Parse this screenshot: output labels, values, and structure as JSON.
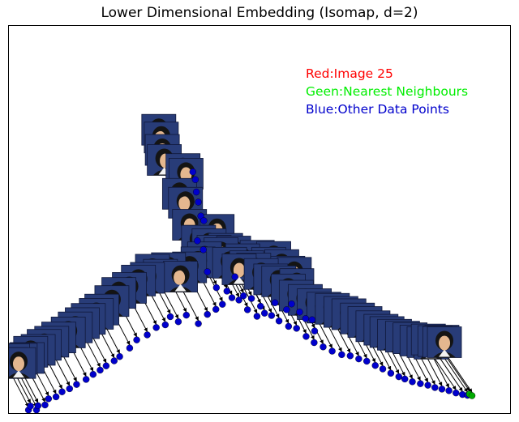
{
  "chart_data": {
    "type": "scatter",
    "title": "Lower Dimensional Embedding (Isomap, d=2)",
    "xlabel": "",
    "ylabel": "",
    "xlim": [
      0,
      100
    ],
    "ylim": [
      0,
      100
    ],
    "grid": false,
    "annotations": [
      {
        "text": "Red:Image 25",
        "color": "#ff0000"
      },
      {
        "text": "Geen:Nearest Neighbours",
        "color": "#00ee00"
      },
      {
        "text": "Blue:Other Data Points",
        "color": "#0000cc"
      }
    ],
    "colors": {
      "highlight": "#ff0000",
      "neighbours": "#00aa00",
      "points": "#0000cc",
      "arrows": "#000000",
      "thumbnail_background": "#283c78",
      "thumbnail_border": "#10183a"
    },
    "thumbnail_icon": "face-photo-icon",
    "series": [
      {
        "name": "Other Data Points",
        "color": "#0000cc",
        "points": [
          [
            3.9,
            0.8
          ],
          [
            5.5,
            0.8
          ],
          [
            4.3,
            1.8
          ],
          [
            5.8,
            1.9
          ],
          [
            7.2,
            2.1
          ],
          [
            7.9,
            3.7
          ],
          [
            9.4,
            4.2
          ],
          [
            10.6,
            5.5
          ],
          [
            12.1,
            6.3
          ],
          [
            13.5,
            7.4
          ],
          [
            15.4,
            8.7
          ],
          [
            16.8,
            10.0
          ],
          [
            18.2,
            11.1
          ],
          [
            19.4,
            12.2
          ],
          [
            21.0,
            13.5
          ],
          [
            22.1,
            14.6
          ],
          [
            24.1,
            16.8
          ],
          [
            25.5,
            18.9
          ],
          [
            27.6,
            20.2
          ],
          [
            29.4,
            22.1
          ],
          [
            31.2,
            22.8
          ],
          [
            32.2,
            24.9
          ],
          [
            33.8,
            23.6
          ],
          [
            35.4,
            25.3
          ],
          [
            37.8,
            23.1
          ],
          [
            39.6,
            25.5
          ],
          [
            41.3,
            26.8
          ],
          [
            42.6,
            28.1
          ],
          [
            44.5,
            29.8
          ],
          [
            45.9,
            29.2
          ],
          [
            47.6,
            26.7
          ],
          [
            49.5,
            25.0
          ],
          [
            51.0,
            25.8
          ],
          [
            52.4,
            25.2
          ],
          [
            53.9,
            23.8
          ],
          [
            55.8,
            22.4
          ],
          [
            57.4,
            21.9
          ],
          [
            59.3,
            19.8
          ],
          [
            60.9,
            18.2
          ],
          [
            62.7,
            17.1
          ],
          [
            64.5,
            16.0
          ],
          [
            66.4,
            15.1
          ],
          [
            68.1,
            14.8
          ],
          [
            69.8,
            14.0
          ],
          [
            71.4,
            13.4
          ],
          [
            73.1,
            12.3
          ],
          [
            74.6,
            11.4
          ],
          [
            76.2,
            10.3
          ],
          [
            77.8,
            9.4
          ],
          [
            79.0,
            8.8
          ],
          [
            80.5,
            8.1
          ],
          [
            82.1,
            7.6
          ],
          [
            83.6,
            7.2
          ],
          [
            85.0,
            6.6
          ],
          [
            86.4,
            6.2
          ],
          [
            87.8,
            5.8
          ],
          [
            89.2,
            5.2
          ],
          [
            90.5,
            4.8
          ],
          [
            91.5,
            4.6
          ],
          [
            36.7,
            62.3
          ],
          [
            37.2,
            60.3
          ],
          [
            37.4,
            57.1
          ],
          [
            37.8,
            54.5
          ],
          [
            38.3,
            50.9
          ],
          [
            38.9,
            49.7
          ],
          [
            37.6,
            44.5
          ],
          [
            38.8,
            42.2
          ],
          [
            39.6,
            36.5
          ],
          [
            41.4,
            32.4
          ],
          [
            43.5,
            31.5
          ],
          [
            45.1,
            35.2
          ],
          [
            46.8,
            30.3
          ],
          [
            48.4,
            29.6
          ],
          [
            50.2,
            27.6
          ],
          [
            53.1,
            28.5
          ],
          [
            55.4,
            26.7
          ],
          [
            56.4,
            28.2
          ],
          [
            58.0,
            26.1
          ],
          [
            59.2,
            24.4
          ],
          [
            60.5,
            24.1
          ],
          [
            61.0,
            21.2
          ]
        ]
      },
      {
        "name": "Nearest Neighbours",
        "color": "#00aa00",
        "points": [
          [
            91.9,
            4.9
          ],
          [
            92.4,
            4.5
          ]
        ]
      }
    ]
  }
}
